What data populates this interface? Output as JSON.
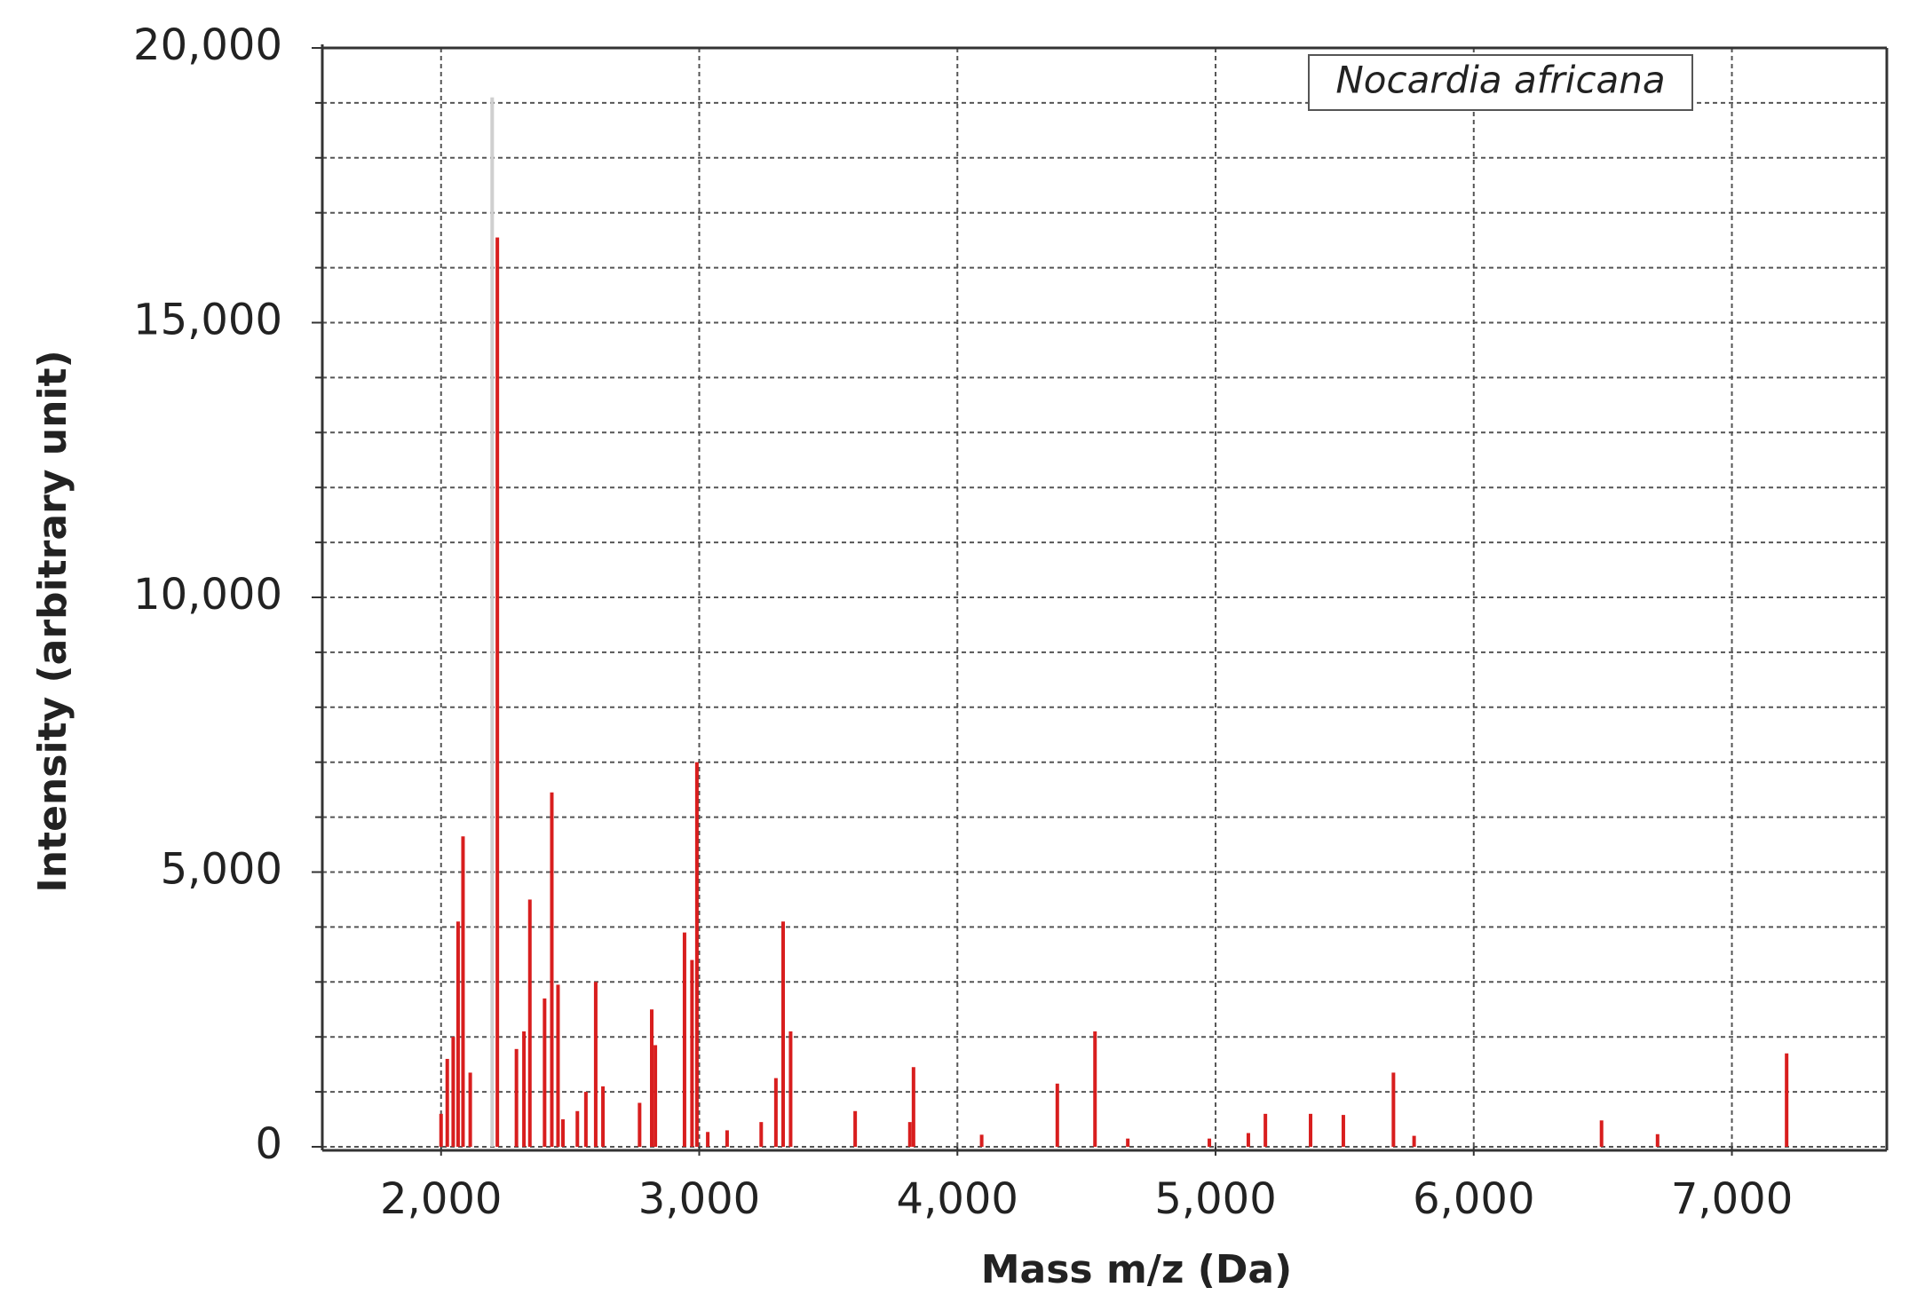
{
  "chart_data": {
    "type": "bar",
    "annotation": "Nocardia africana",
    "x_label": "Mass m/z (Da)",
    "y_label": "Intensity (arbitrary unit)",
    "xlim": [
      1540,
      7600
    ],
    "xticks": [
      {
        "value": 2000,
        "label": "2,000"
      },
      {
        "value": 3000,
        "label": "3,000"
      },
      {
        "value": 4000,
        "label": "4,000"
      },
      {
        "value": 5000,
        "label": "5,000"
      },
      {
        "value": 6000,
        "label": "6,000"
      },
      {
        "value": 7000,
        "label": "7,000"
      }
    ],
    "ylim": [
      0,
      20000
    ],
    "yticks": [
      0,
      {
        "value": 5000,
        "label": "5,000"
      },
      {
        "value": 10000,
        "label": "10,000"
      },
      {
        "value": 15000,
        "label": "15,000"
      },
      {
        "value": 20000,
        "label": "20,000"
      }
    ],
    "yminorticks": [
      1000,
      2000,
      3000,
      4000,
      6000,
      7000,
      8000,
      9000,
      11000,
      12000,
      13000,
      14000,
      16000,
      17000,
      18000,
      19000
    ],
    "grid": true,
    "color": "#d81e1e",
    "x": [
      2198,
      2000,
      2024,
      2047,
      2066,
      2085,
      2113,
      2218,
      2292,
      2321,
      2344,
      2401,
      2429,
      2453,
      2472,
      2528,
      2561,
      2599,
      2627,
      2769,
      2816,
      2830,
      2943,
      2972,
      2991,
      3033,
      3108,
      3240,
      3297,
      3325,
      3354,
      3604,
      3816,
      3830,
      4094,
      4387,
      4533,
      4660,
      4976,
      5127,
      5193,
      5368,
      5495,
      5689,
      5769,
      6495,
      6712,
      7212
    ],
    "values": [
      19100,
      600,
      1600,
      2000,
      4100,
      5650,
      1350,
      16550,
      1780,
      2100,
      4500,
      2700,
      6450,
      2950,
      500,
      650,
      1000,
      3000,
      1100,
      800,
      2500,
      1850,
      3900,
      3400,
      7000,
      270,
      300,
      450,
      1250,
      4100,
      2100,
      650,
      450,
      1450,
      220,
      1150,
      2100,
      150,
      150,
      250,
      600,
      600,
      580,
      1350,
      200,
      480,
      230,
      1700
    ],
    "colors": [
      "#cfcfcf",
      "#d81e1e",
      "#d81e1e",
      "#d81e1e",
      "#d81e1e",
      "#d81e1e",
      "#d81e1e",
      "#d81e1e",
      "#d81e1e",
      "#d81e1e",
      "#d81e1e",
      "#d81e1e",
      "#d81e1e",
      "#d81e1e",
      "#d81e1e",
      "#d81e1e",
      "#d81e1e",
      "#d81e1e",
      "#d81e1e",
      "#d81e1e",
      "#d81e1e",
      "#d81e1e",
      "#d81e1e",
      "#d81e1e",
      "#d81e1e",
      "#d81e1e",
      "#d81e1e",
      "#d81e1e",
      "#d81e1e",
      "#d81e1e",
      "#d81e1e",
      "#d81e1e",
      "#d81e1e",
      "#d81e1e",
      "#d81e1e",
      "#d81e1e",
      "#d81e1e",
      "#d81e1e",
      "#d81e1e",
      "#d81e1e",
      "#d81e1e",
      "#d81e1e",
      "#d81e1e",
      "#d81e1e",
      "#d81e1e",
      "#d81e1e",
      "#d81e1e",
      "#d81e1e"
    ]
  }
}
